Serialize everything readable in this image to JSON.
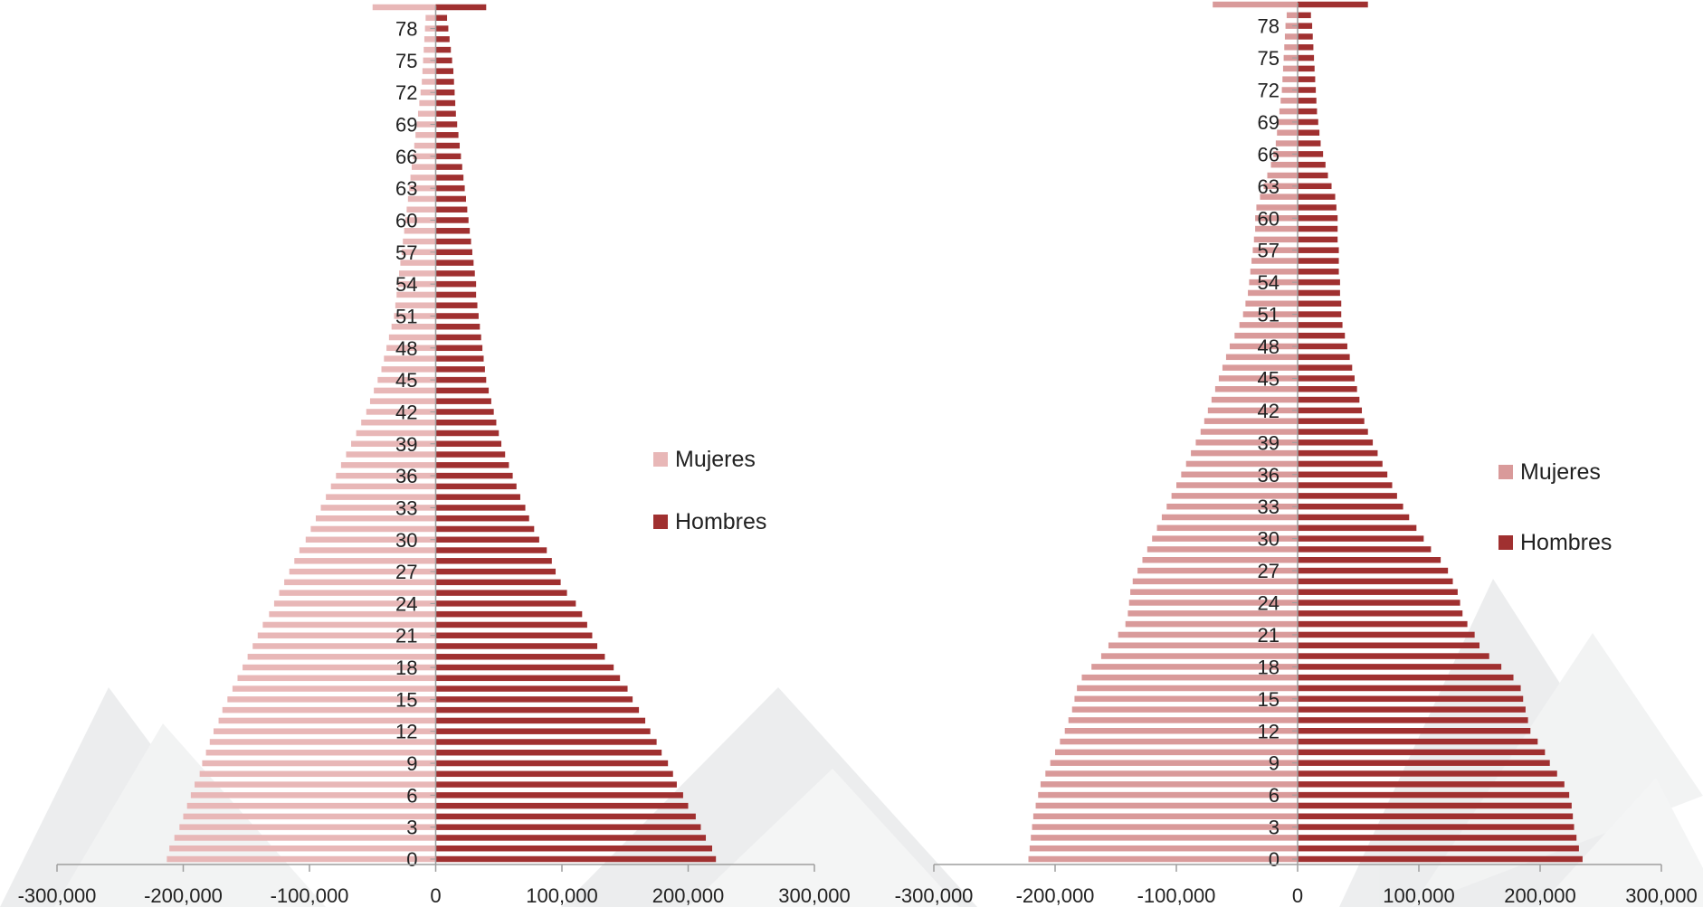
{
  "chart_data": [
    {
      "type": "bar",
      "orientation": "horizontal",
      "subtype": "population-pyramid",
      "title": "",
      "xlabel": "",
      "ylabel": "",
      "xlim": [
        -300000,
        300000
      ],
      "x_ticks": [
        "-300,000",
        "-200,000",
        "-100,000",
        "0",
        "100,000",
        "200,000",
        "300,000"
      ],
      "x_tick_values": [
        -300000,
        -200000,
        -100000,
        0,
        100000,
        200000,
        300000
      ],
      "y_ticks": [
        "0",
        "3",
        "6",
        "9",
        "12",
        "15",
        "18",
        "21",
        "24",
        "27",
        "30",
        "33",
        "36",
        "39",
        "42",
        "45",
        "48",
        "51",
        "54",
        "57",
        "60",
        "63",
        "66",
        "69",
        "72",
        "75",
        "78"
      ],
      "categories": [
        0,
        1,
        2,
        3,
        4,
        5,
        6,
        7,
        8,
        9,
        10,
        11,
        12,
        13,
        14,
        15,
        16,
        17,
        18,
        19,
        20,
        21,
        22,
        23,
        24,
        25,
        26,
        27,
        28,
        29,
        30,
        31,
        32,
        33,
        34,
        35,
        36,
        37,
        38,
        39,
        40,
        41,
        42,
        43,
        44,
        45,
        46,
        47,
        48,
        49,
        50,
        51,
        52,
        53,
        54,
        55,
        56,
        57,
        58,
        59,
        60,
        61,
        62,
        63,
        64,
        65,
        66,
        67,
        68,
        69,
        70,
        71,
        72,
        73,
        74,
        75,
        76,
        77,
        78,
        79,
        80
      ],
      "legend": {
        "position": "right",
        "entries": [
          "Mujeres",
          "Hombres"
        ]
      },
      "series": [
        {
          "name": "Mujeres",
          "color": "#e8b7b7",
          "values": [
            -213000,
            -211000,
            -207000,
            -203000,
            -200000,
            -197000,
            -194000,
            -191000,
            -187000,
            -185000,
            -182000,
            -179000,
            -176000,
            -172000,
            -169000,
            -165000,
            -161000,
            -157000,
            -153000,
            -149000,
            -145000,
            -141000,
            -137000,
            -132000,
            -128000,
            -124000,
            -120000,
            -116000,
            -112000,
            -108000,
            -103000,
            -99000,
            -95000,
            -91000,
            -87000,
            -83000,
            -79000,
            -75000,
            -71000,
            -67000,
            -63000,
            -59000,
            -55000,
            -52000,
            -49000,
            -46000,
            -43000,
            -41000,
            -39000,
            -37000,
            -35000,
            -33000,
            -32000,
            -31000,
            -30000,
            -29000,
            -28000,
            -27000,
            -26000,
            -25000,
            -24000,
            -23000,
            -22000,
            -21000,
            -20000,
            -19000,
            -18000,
            -17000,
            -16000,
            -15000,
            -14000,
            -13000,
            -12000,
            -11000,
            -10500,
            -10000,
            -9500,
            -9000,
            -8500,
            -8000,
            -50000
          ]
        },
        {
          "name": "Hombres",
          "color": "#a03030",
          "values": [
            222000,
            219000,
            214000,
            210000,
            206000,
            200000,
            196000,
            191000,
            188000,
            184000,
            179000,
            175000,
            170000,
            166000,
            161000,
            156000,
            152000,
            146000,
            141000,
            134000,
            128000,
            124000,
            120000,
            116000,
            111000,
            104000,
            99000,
            95000,
            92000,
            88000,
            82000,
            78000,
            74000,
            71000,
            67000,
            64000,
            61000,
            58000,
            55000,
            52000,
            50000,
            48000,
            46000,
            44000,
            42000,
            40000,
            39000,
            38000,
            37000,
            36000,
            35000,
            34000,
            33000,
            32000,
            32000,
            31000,
            30000,
            29000,
            28000,
            27000,
            26000,
            25000,
            24000,
            23000,
            22000,
            21000,
            20000,
            19000,
            18000,
            17000,
            16000,
            15500,
            15000,
            14500,
            14000,
            13000,
            12000,
            11000,
            10000,
            9000,
            40000
          ]
        }
      ]
    },
    {
      "type": "bar",
      "orientation": "horizontal",
      "subtype": "population-pyramid",
      "title": "",
      "xlabel": "",
      "ylabel": "",
      "xlim": [
        -300000,
        300000
      ],
      "x_ticks": [
        "-300,000",
        "-200,000",
        "-100,000",
        "0",
        "100,000",
        "200,000",
        "300,000"
      ],
      "x_tick_values": [
        -300000,
        -200000,
        -100000,
        0,
        100000,
        200000,
        300000
      ],
      "y_ticks": [
        "0",
        "3",
        "6",
        "9",
        "12",
        "15",
        "18",
        "21",
        "24",
        "27",
        "30",
        "33",
        "36",
        "39",
        "42",
        "45",
        "48",
        "51",
        "54",
        "57",
        "60",
        "63",
        "66",
        "69",
        "72",
        "75",
        "78"
      ],
      "categories": [
        0,
        1,
        2,
        3,
        4,
        5,
        6,
        7,
        8,
        9,
        10,
        11,
        12,
        13,
        14,
        15,
        16,
        17,
        18,
        19,
        20,
        21,
        22,
        23,
        24,
        25,
        26,
        27,
        28,
        29,
        30,
        31,
        32,
        33,
        34,
        35,
        36,
        37,
        38,
        39,
        40,
        41,
        42,
        43,
        44,
        45,
        46,
        47,
        48,
        49,
        50,
        51,
        52,
        53,
        54,
        55,
        56,
        57,
        58,
        59,
        60,
        61,
        62,
        63,
        64,
        65,
        66,
        67,
        68,
        69,
        70,
        71,
        72,
        73,
        74,
        75,
        76,
        77,
        78,
        79,
        80
      ],
      "legend": {
        "position": "right",
        "entries": [
          "Mujeres",
          "Hombres"
        ]
      },
      "series": [
        {
          "name": "Mujeres",
          "color": "#d99a9a",
          "values": [
            -222000,
            -221000,
            -220000,
            -219000,
            -218000,
            -216000,
            -214000,
            -212000,
            -208000,
            -204000,
            -200000,
            -196000,
            -192000,
            -189000,
            -186000,
            -184000,
            -182000,
            -178000,
            -170000,
            -162000,
            -156000,
            -148000,
            -142000,
            -140000,
            -139000,
            -138000,
            -136000,
            -132000,
            -128000,
            -124000,
            -120000,
            -116000,
            -112000,
            -108000,
            -104000,
            -100000,
            -96000,
            -92000,
            -88000,
            -84000,
            -80000,
            -77000,
            -74000,
            -71000,
            -68000,
            -65000,
            -62000,
            -59000,
            -56000,
            -52000,
            -48000,
            -45000,
            -43000,
            -41000,
            -40000,
            -39000,
            -38000,
            -37000,
            -36000,
            -35000,
            -35000,
            -34000,
            -31000,
            -28000,
            -25000,
            -22000,
            -20000,
            -18000,
            -17000,
            -16000,
            -15000,
            -14000,
            -13000,
            -12500,
            -12000,
            -11500,
            -11000,
            -10500,
            -10000,
            -9000,
            -70000
          ]
        },
        {
          "name": "Hombres",
          "color": "#a03030",
          "values": [
            235000,
            232000,
            230000,
            228000,
            227000,
            226000,
            224000,
            220000,
            214000,
            208000,
            204000,
            198000,
            192000,
            190000,
            188000,
            186000,
            184000,
            178000,
            168000,
            158000,
            150000,
            146000,
            140000,
            136000,
            134000,
            132000,
            128000,
            124000,
            118000,
            110000,
            104000,
            98000,
            92000,
            87000,
            82000,
            78000,
            74000,
            70000,
            66000,
            62000,
            58000,
            55000,
            53000,
            51000,
            49000,
            47000,
            45000,
            43000,
            41000,
            39000,
            37000,
            36000,
            36000,
            35000,
            35000,
            34000,
            34000,
            34000,
            33000,
            33000,
            33000,
            32000,
            31000,
            28000,
            25000,
            23000,
            21000,
            19000,
            18000,
            17000,
            16000,
            15500,
            15000,
            14500,
            14000,
            13500,
            13000,
            12500,
            12000,
            11000,
            58000
          ]
        }
      ]
    }
  ]
}
